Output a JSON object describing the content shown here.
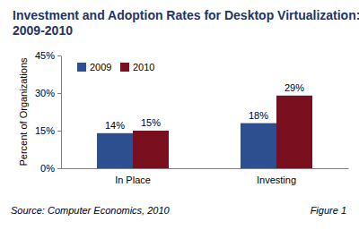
{
  "chart_data": {
    "type": "bar",
    "title": "Investment and Adoption Rates for Desktop Virtualization:\n2009-2010",
    "y_label": "Percent of Organizations",
    "categories": [
      "In Place",
      "Investing"
    ],
    "series": [
      {
        "name": "2009",
        "color": "#2c4f8f",
        "values": [
          14,
          18
        ],
        "value_labels": [
          "14%",
          "18%"
        ]
      },
      {
        "name": "2010",
        "color": "#7a0f1f",
        "values": [
          15,
          29
        ],
        "value_labels": [
          "15%",
          "29%"
        ]
      }
    ],
    "ylim": [
      0,
      45
    ],
    "yticks": [
      {
        "value": 0,
        "label": "0%"
      },
      {
        "value": 15,
        "label": "15%"
      },
      {
        "value": 30,
        "label": "30%"
      },
      {
        "value": 45,
        "label": "45%"
      }
    ],
    "grid": false,
    "legend": "upper left",
    "data_labels": true,
    "annotations": [
      "Source: Computer Economics, 2010",
      "Figure 1"
    ]
  }
}
